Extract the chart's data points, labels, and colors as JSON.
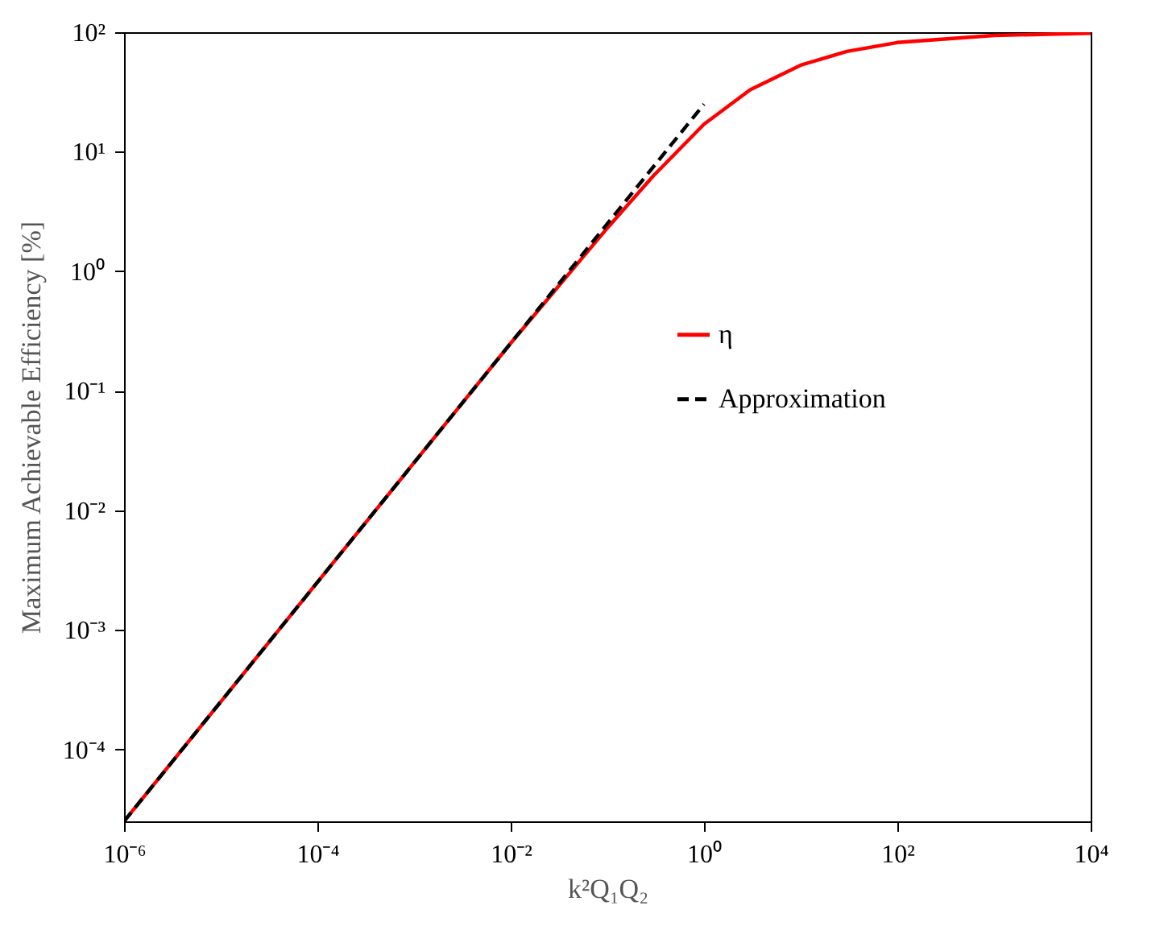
{
  "chart_data": {
    "type": "line",
    "xlabel": "k²Q₁Q₂",
    "ylabel": "Maximum Achievable Efficiency [%]",
    "log": "xy",
    "grid": false,
    "legend": "right",
    "xlim": [
      1e-06,
      10000
    ],
    "ylim": [
      2.5e-05,
      100
    ],
    "xticks": [
      {
        "value": 1e-06,
        "label": "10⁻⁶"
      },
      {
        "value": 0.0001,
        "label": "10⁻⁴"
      },
      {
        "value": 0.01,
        "label": "10⁻²"
      },
      {
        "value": 1,
        "label": "10⁰"
      },
      {
        "value": 100,
        "label": "10²"
      },
      {
        "value": 10000,
        "label": "10⁴"
      }
    ],
    "yticks": [
      {
        "value": 0.0001,
        "label": "10⁻⁴"
      },
      {
        "value": 0.001,
        "label": "10⁻³"
      },
      {
        "value": 0.01,
        "label": "10⁻²"
      },
      {
        "value": 0.1,
        "label": "10⁻¹"
      },
      {
        "value": 1,
        "label": "10⁰"
      },
      {
        "value": 10,
        "label": "10¹"
      },
      {
        "value": 100,
        "label": "10²"
      }
    ],
    "series": [
      {
        "name": "η",
        "color": "#ff0000",
        "line_style": "solid",
        "x": [
          1e-06,
          1e-05,
          0.0001,
          0.001,
          0.01,
          0.1,
          0.3,
          1,
          3,
          10,
          30,
          100,
          1000,
          10000
        ],
        "values": [
          2.5e-05,
          0.00025,
          0.0025,
          0.025,
          0.25,
          2.3,
          6.3,
          17,
          33,
          53,
          69,
          82,
          94,
          98
        ]
      },
      {
        "name": "Approximation",
        "color": "#000000",
        "line_style": "dashed",
        "x": [
          1e-06,
          1
        ],
        "values": [
          2.5e-05,
          25
        ]
      }
    ]
  }
}
